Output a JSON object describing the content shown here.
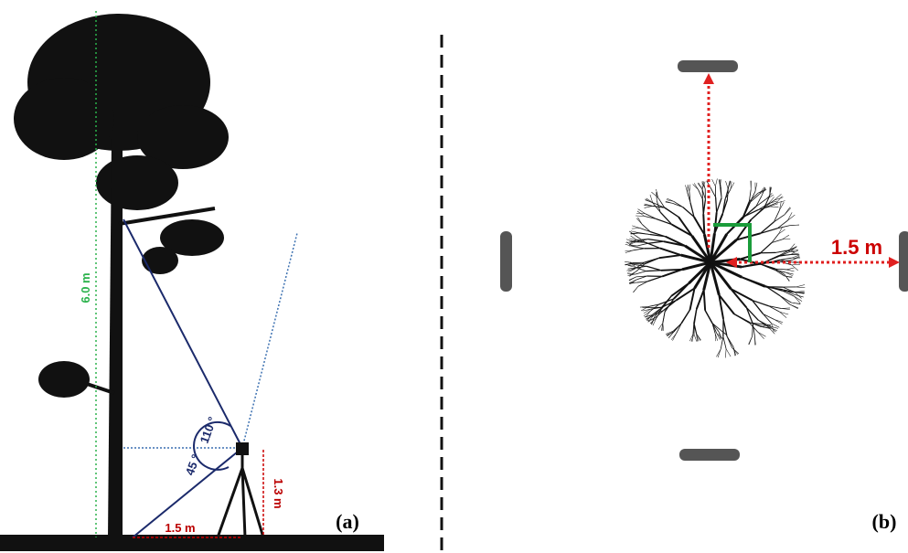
{
  "panel_a": {
    "height_label": "6.0 m",
    "fov_angle": "110 °",
    "tilt_angle": "45 °",
    "scanner_height": "1.3 m",
    "distance": "1.5 m",
    "caption": "(a)"
  },
  "panel_b": {
    "distance": "1.5 m",
    "caption": "(b)"
  }
}
